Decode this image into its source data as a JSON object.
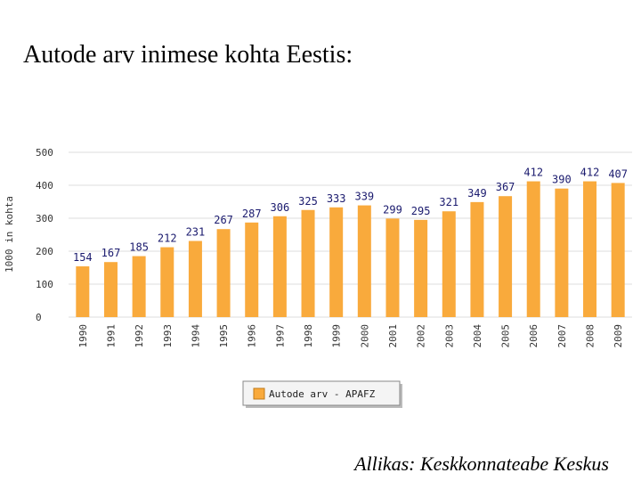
{
  "slide": {
    "title": "Autode arv inimese kohta Eestis:",
    "source": "Allikas: Keskkonnateabe Keskus"
  },
  "colors": {
    "bar": "#F9AA3C",
    "grid": "#dddddd",
    "value_label": "#1a1a6e",
    "legend_border": "#888888"
  },
  "chart_data": {
    "type": "bar",
    "categories": [
      "1990",
      "1991",
      "1992",
      "1993",
      "1994",
      "1995",
      "1996",
      "1997",
      "1998",
      "1999",
      "2000",
      "2001",
      "2002",
      "2003",
      "2004",
      "2005",
      "2006",
      "2007",
      "2008",
      "2009"
    ],
    "series": [
      {
        "name": "Autode arv - APAFZ",
        "values": [
          154,
          167,
          185,
          212,
          231,
          267,
          287,
          306,
          325,
          333,
          339,
          299,
          295,
          321,
          349,
          367,
          412,
          390,
          412,
          407
        ]
      }
    ],
    "ylabel": "1000 in kohta",
    "xlabel": "",
    "ylim": [
      0,
      500
    ],
    "yticks": [
      0,
      100,
      200,
      300,
      400,
      500
    ],
    "grid": true,
    "legend": "bottom-center"
  }
}
